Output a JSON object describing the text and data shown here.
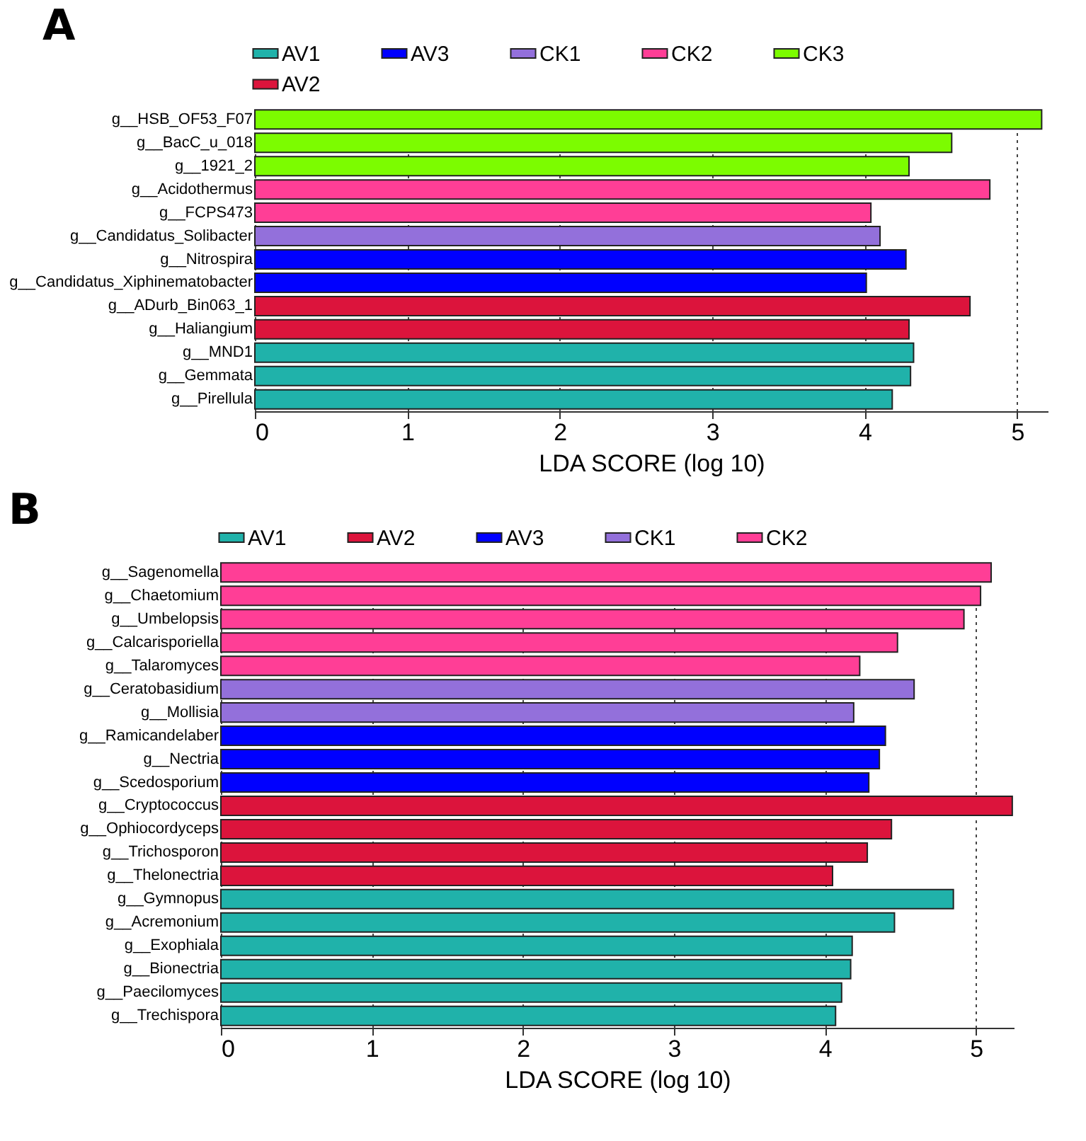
{
  "chart_data": [
    {
      "type": "bar",
      "title": "A",
      "orientation": "horizontal",
      "xlabel": "LDA SCORE (log 10)",
      "xlim": [
        0,
        5.2
      ],
      "xticks": [
        0,
        1,
        2,
        3,
        4,
        5
      ],
      "grid": "x",
      "legend": "top",
      "categories": [
        "g__HSB_OF53_F07",
        "g__BacC_u_018",
        "g__1921_2",
        "g__Acidothermus",
        "g__FCPS473",
        "g__Candidatus_Solibacter",
        "g__Nitrospira",
        "g__Candidatus_Xiphinematobacter",
        "g__ADurb_Bin063_1",
        "g__Haliangium",
        "g__MND1",
        "g__Gemmata",
        "g__Pirellula"
      ],
      "series": [
        {
          "name": "AV1",
          "color": "#20b2aa",
          "values": [
            null,
            null,
            null,
            null,
            null,
            null,
            null,
            null,
            null,
            null,
            4.32,
            4.3,
            4.18
          ]
        },
        {
          "name": "AV3",
          "color": "#0000ff",
          "values": [
            null,
            null,
            null,
            null,
            null,
            null,
            4.27,
            4.01,
            null,
            null,
            null,
            null,
            null
          ]
        },
        {
          "name": "CK1",
          "color": "#9370db",
          "values": [
            null,
            null,
            null,
            null,
            null,
            4.1,
            null,
            null,
            null,
            null,
            null,
            null,
            null
          ]
        },
        {
          "name": "CK2",
          "color": "#ff3e96",
          "values": [
            null,
            null,
            null,
            4.82,
            4.04,
            null,
            null,
            null,
            null,
            null,
            null,
            null,
            null
          ]
        },
        {
          "name": "CK3",
          "color": "#7cfc00",
          "values": [
            5.16,
            4.57,
            4.29,
            null,
            null,
            null,
            null,
            null,
            null,
            null,
            null,
            null,
            null
          ]
        },
        {
          "name": "AV2",
          "color": "#dc143c",
          "values": [
            null,
            null,
            null,
            null,
            null,
            null,
            null,
            null,
            4.69,
            4.29,
            null,
            null,
            null
          ]
        }
      ]
    },
    {
      "type": "bar",
      "title": "B",
      "orientation": "horizontal",
      "xlabel": "LDA SCORE (log 10)",
      "xlim": [
        0,
        5.25
      ],
      "xticks": [
        0,
        1,
        2,
        3,
        4,
        5
      ],
      "grid": "x",
      "legend": "top",
      "categories": [
        "g__Sagenomella",
        "g__Chaetomium",
        "g__Umbelopsis",
        "g__Calcarisporiella",
        "g__Talaromyces",
        "g__Ceratobasidium",
        "g__Mollisia",
        "g__Ramicandelaber",
        "g__Nectria",
        "g__Scedosporium",
        "g__Cryptococcus",
        "g__Ophiocordyceps",
        "g__Trichosporon",
        "g__Thelonectria",
        "g__Gymnopus",
        "g__Acremonium",
        "g__Exophiala",
        "g__Bionectria",
        "g__Paecilomyces",
        "g__Trechispora"
      ],
      "series": [
        {
          "name": "AV1",
          "color": "#20b2aa",
          "values": [
            null,
            null,
            null,
            null,
            null,
            null,
            null,
            null,
            null,
            null,
            null,
            null,
            null,
            null,
            4.85,
            4.46,
            4.18,
            4.17,
            4.11,
            4.07
          ]
        },
        {
          "name": "AV2",
          "color": "#dc143c",
          "values": [
            null,
            null,
            null,
            null,
            null,
            null,
            null,
            null,
            null,
            null,
            5.24,
            4.44,
            4.28,
            4.05,
            null,
            null,
            null,
            null,
            null,
            null
          ]
        },
        {
          "name": "AV3",
          "color": "#0000ff",
          "values": [
            null,
            null,
            null,
            null,
            null,
            null,
            null,
            4.4,
            4.36,
            4.29,
            null,
            null,
            null,
            null,
            null,
            null,
            null,
            null,
            null,
            null
          ]
        },
        {
          "name": "CK1",
          "color": "#9370db",
          "values": [
            null,
            null,
            null,
            null,
            null,
            4.59,
            4.19,
            null,
            null,
            null,
            null,
            null,
            null,
            null,
            null,
            null,
            null,
            null,
            null,
            null
          ]
        },
        {
          "name": "CK2",
          "color": "#ff3e96",
          "values": [
            5.1,
            5.03,
            4.92,
            4.48,
            4.23,
            null,
            null,
            null,
            null,
            null,
            null,
            null,
            null,
            null,
            null,
            null,
            null,
            null,
            null,
            null
          ]
        }
      ]
    }
  ]
}
